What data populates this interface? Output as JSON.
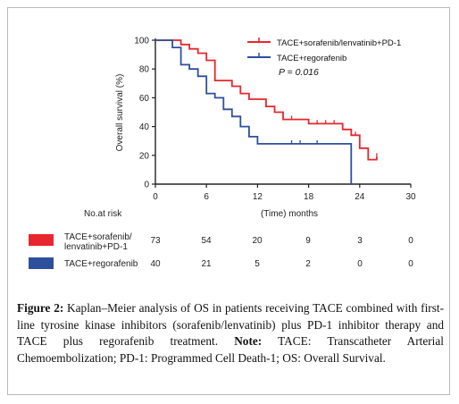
{
  "chart_data": {
    "type": "line",
    "title": "",
    "xlabel": "(Time) months",
    "ylabel": "Overall survival (%)",
    "xlim": [
      0,
      30
    ],
    "ylim": [
      0,
      100
    ],
    "xticks": [
      "0",
      "6",
      "12",
      "18",
      "24",
      "30"
    ],
    "yticks": [
      "0",
      "20",
      "40",
      "60",
      "80",
      "100"
    ],
    "annotation": "P = 0.016",
    "legend_position": "top-right",
    "series": [
      {
        "name": "TACE+sorafenib/lenvatinib+PD-1",
        "color": "#e8262d",
        "steps": [
          [
            0,
            100
          ],
          [
            3,
            100
          ],
          [
            3,
            97
          ],
          [
            4,
            97
          ],
          [
            4,
            94
          ],
          [
            5,
            94
          ],
          [
            5,
            91
          ],
          [
            6,
            91
          ],
          [
            6,
            86
          ],
          [
            7,
            86
          ],
          [
            7,
            72
          ],
          [
            9,
            72
          ],
          [
            9,
            68
          ],
          [
            10,
            68
          ],
          [
            10,
            63
          ],
          [
            11,
            63
          ],
          [
            11,
            59
          ],
          [
            13,
            59
          ],
          [
            13,
            54
          ],
          [
            14,
            54
          ],
          [
            14,
            50
          ],
          [
            15,
            50
          ],
          [
            15,
            45
          ],
          [
            18,
            45
          ],
          [
            18,
            42
          ],
          [
            22,
            42
          ],
          [
            22,
            38
          ],
          [
            23,
            38
          ],
          [
            23,
            34
          ],
          [
            24,
            34
          ],
          [
            24,
            25
          ],
          [
            25,
            25
          ],
          [
            25,
            17
          ],
          [
            26,
            17
          ],
          [
            26,
            19
          ]
        ],
        "censor_marks": [
          [
            16,
            45
          ],
          [
            19,
            42
          ],
          [
            20,
            42
          ],
          [
            21,
            42
          ],
          [
            23.5,
            34
          ],
          [
            26,
            19
          ]
        ]
      },
      {
        "name": "TACE+regorafenib",
        "color": "#2e4f9b",
        "steps": [
          [
            0,
            100
          ],
          [
            2,
            100
          ],
          [
            2,
            95
          ],
          [
            3,
            95
          ],
          [
            3,
            83
          ],
          [
            4,
            83
          ],
          [
            4,
            80
          ],
          [
            5,
            80
          ],
          [
            5,
            75
          ],
          [
            6,
            75
          ],
          [
            6,
            63
          ],
          [
            7,
            63
          ],
          [
            7,
            60
          ],
          [
            8,
            60
          ],
          [
            8,
            52
          ],
          [
            9,
            52
          ],
          [
            9,
            47
          ],
          [
            10,
            47
          ],
          [
            10,
            40
          ],
          [
            11,
            40
          ],
          [
            11,
            33
          ],
          [
            12,
            33
          ],
          [
            12,
            28
          ],
          [
            23,
            28
          ],
          [
            23,
            0
          ]
        ],
        "censor_marks": [
          [
            16,
            28
          ],
          [
            17,
            28
          ],
          [
            19,
            28
          ]
        ]
      }
    ]
  },
  "risk_table": {
    "title": "No.at risk",
    "rows": [
      {
        "label_line1": "TACE+sorafenib/",
        "label_line2": "lenvatinib+PD-1",
        "color": "#e8262d",
        "values": [
          "73",
          "54",
          "20",
          "9",
          "3",
          "0"
        ]
      },
      {
        "label_line1": "TACE+regorafenib",
        "label_line2": "",
        "color": "#2e4f9b",
        "values": [
          "40",
          "21",
          "5",
          "2",
          "0",
          "0"
        ]
      }
    ]
  },
  "caption": {
    "label": "Figure 2:",
    "text": " Kaplan–Meier analysis of OS in patients receiving TACE combined with first-line tyrosine kinase inhibitors (sorafenib/lenvatinib) plus PD-1 inhibitor therapy and TACE plus regorafenib treatment. ",
    "note_label": "Note:",
    "note_text": " TACE: Transcatheter Arterial Chemoembolization; PD-1: Programmed Cell Death-1; OS: Overall Survival."
  }
}
